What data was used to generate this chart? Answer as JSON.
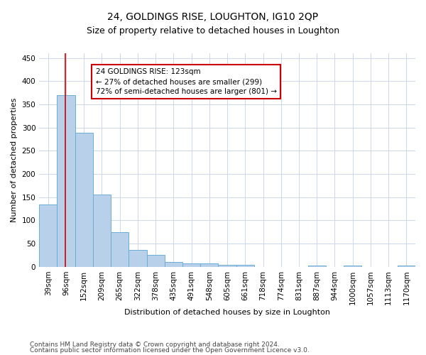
{
  "title": "24, GOLDINGS RISE, LOUGHTON, IG10 2QP",
  "subtitle": "Size of property relative to detached houses in Loughton",
  "xlabel": "Distribution of detached houses by size in Loughton",
  "ylabel": "Number of detached properties",
  "bar_vals": [
    135,
    370,
    288,
    155,
    75,
    37,
    25,
    11,
    8,
    7,
    5,
    4,
    0,
    0,
    0,
    3,
    0,
    3,
    0,
    0,
    3
  ],
  "bar_labels": [
    "39sqm",
    "96sqm",
    "152sqm",
    "209sqm",
    "265sqm",
    "322sqm",
    "378sqm",
    "435sqm",
    "491sqm",
    "548sqm",
    "605sqm",
    "661sqm",
    "718sqm",
    "774sqm",
    "831sqm",
    "887sqm",
    "944sqm",
    "1000sqm",
    "1057sqm",
    "1113sqm",
    "1170sqm"
  ],
  "bar_color": "#b8d0ea",
  "bar_edge_color": "#6baed6",
  "property_line_color": "#cc0000",
  "annotation_line1": "24 GOLDINGS RISE: 123sqm",
  "annotation_line2": "← 27% of detached houses are smaller (299)",
  "annotation_line3": "72% of semi-detached houses are larger (801) →",
  "annotation_box_color": "#cc0000",
  "red_line_x": 1.47,
  "ylim": [
    0,
    460
  ],
  "yticks": [
    0,
    50,
    100,
    150,
    200,
    250,
    300,
    350,
    400,
    450
  ],
  "footer_line1": "Contains HM Land Registry data © Crown copyright and database right 2024.",
  "footer_line2": "Contains public sector information licensed under the Open Government Licence v3.0.",
  "bg_color": "#ffffff",
  "grid_color": "#ccd8e8",
  "title_fontsize": 10,
  "subtitle_fontsize": 9,
  "ylabel_fontsize": 8,
  "xlabel_fontsize": 8,
  "tick_fontsize": 7.5,
  "annot_fontsize": 7.5,
  "footer_fontsize": 6.5
}
